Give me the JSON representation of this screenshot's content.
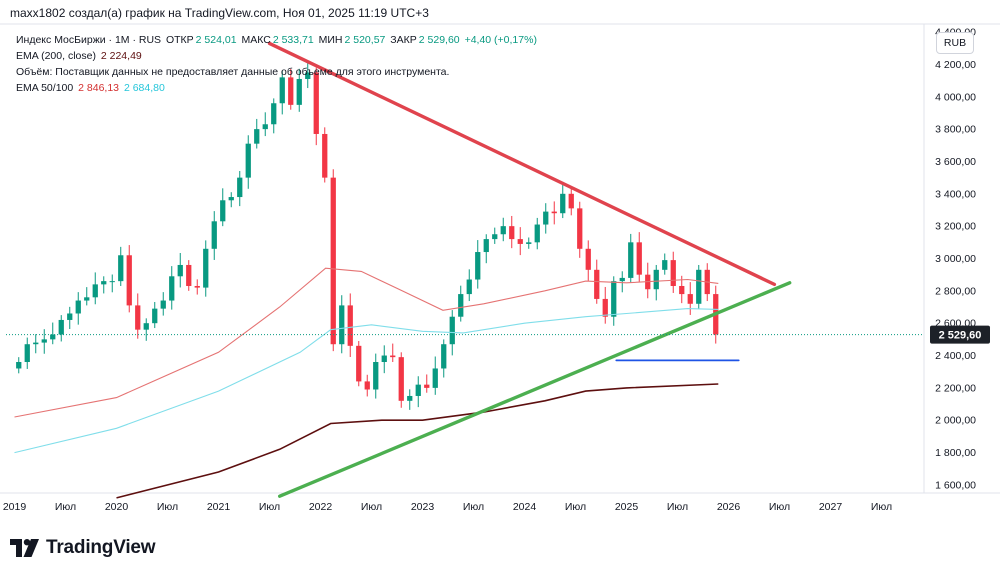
{
  "header": {
    "text": "maxx1802 создал(а) график на TradingView.com, Ноя 01, 2025 11:19 UTC+3"
  },
  "legend": {
    "symbol": "Индекс МосБиржи · 1М · RUS",
    "open_label": "ОТКР",
    "open": "2 524,01",
    "high_label": "МАКС",
    "high": "2 533,71",
    "low_label": "МИН",
    "low": "2 520,57",
    "close_label": "ЗАКР",
    "close": "2 529,60",
    "change": "+4,40 (+0,17%)",
    "ema200_label": "EMA (200, close)",
    "ema200_value": "2 224,49",
    "volume_text": "Объём: Поставщик данных не предоставляет данные об объеме для этого инструмента.",
    "ema50_100_label": "EMA 50/100",
    "ema50_value": "2 846,13",
    "ema100_value": "2 684,80"
  },
  "currency_button": "RUB",
  "brand": "TradingView",
  "colors": {
    "up": "#089981",
    "down": "#f23645",
    "ema50": "#e57373",
    "ema100": "#80deea",
    "ema200": "#5d0f0f",
    "resistance": "#e0434d",
    "support": "#4caf50",
    "level": "#1e53e5"
  },
  "chart_data": {
    "type": "candlestick",
    "y_axis": {
      "min": 1550,
      "max": 4450,
      "ticks": [
        1600,
        1800,
        2000,
        2200,
        2400,
        2600,
        2800,
        3000,
        3200,
        3400,
        3600,
        3800,
        4000,
        4200,
        4400
      ],
      "tick_labels": [
        "1 600,00",
        "1 800,00",
        "2 000,00",
        "2 200,00",
        "2 400,00",
        "2 600,00",
        "2 800,00",
        "3 000,00",
        "3 200,00",
        "3 400,00",
        "3 600,00",
        "3 800,00",
        "4 000,00",
        "4 200,00",
        "4 400,00"
      ]
    },
    "x_axis": {
      "start": "2018-12",
      "end": "2027-12",
      "tick_labels": [
        {
          "label": "2019",
          "month": "2019-01"
        },
        {
          "label": "Июл",
          "month": "2019-07"
        },
        {
          "label": "2020",
          "month": "2020-01"
        },
        {
          "label": "Июл",
          "month": "2020-07"
        },
        {
          "label": "2021",
          "month": "2021-01"
        },
        {
          "label": "Июл",
          "month": "2021-07"
        },
        {
          "label": "2022",
          "month": "2022-01"
        },
        {
          "label": "Июл",
          "month": "2022-07"
        },
        {
          "label": "2023",
          "month": "2023-01"
        },
        {
          "label": "Июл",
          "month": "2023-07"
        },
        {
          "label": "2024",
          "month": "2024-01"
        },
        {
          "label": "Июл",
          "month": "2024-07"
        },
        {
          "label": "2025",
          "month": "2025-01"
        },
        {
          "label": "Июл",
          "month": "2025-07"
        },
        {
          "label": "2026",
          "month": "2026-01"
        },
        {
          "label": "Июл",
          "month": "2026-07"
        },
        {
          "label": "2027",
          "month": "2027-01"
        },
        {
          "label": "Июл",
          "month": "2027-07"
        }
      ]
    },
    "first_month": "2019-01",
    "closes": [
      2360,
      2470,
      2480,
      2500,
      2530,
      2620,
      2660,
      2740,
      2760,
      2840,
      2860,
      2860,
      3020,
      2710,
      2560,
      2600,
      2690,
      2740,
      2890,
      2960,
      2830,
      2820,
      3060,
      3230,
      3360,
      3380,
      3500,
      3710,
      3800,
      3830,
      3960,
      4120,
      3950,
      4110,
      4150,
      3770,
      3500,
      2470,
      2710,
      2460,
      2240,
      2190,
      2360,
      2400,
      2390,
      2120,
      2150,
      2220,
      2200,
      2320,
      2470,
      2640,
      2780,
      2870,
      3040,
      3120,
      3150,
      3200,
      3120,
      3090,
      3100,
      3210,
      3290,
      3280,
      3400,
      3310,
      3060,
      2930,
      2750,
      2640,
      2860,
      2880,
      3100,
      2900,
      2810,
      2930,
      2990,
      2830,
      2780,
      2720,
      2930,
      2780,
      2530
    ],
    "closes_end": "2025-11",
    "last_price": 2529.6,
    "last_price_label": "2 529,60",
    "ema_lines": [
      {
        "name": "EMA 50",
        "points": [
          [
            2019.0,
            2020
          ],
          [
            2020.0,
            2140
          ],
          [
            2021.0,
            2420
          ],
          [
            2021.6,
            2700
          ],
          [
            2022.05,
            2940
          ],
          [
            2022.4,
            2920
          ],
          [
            2022.8,
            2800
          ],
          [
            2023.2,
            2680
          ],
          [
            2023.6,
            2720
          ],
          [
            2024.2,
            2800
          ],
          [
            2024.6,
            2860
          ],
          [
            2025.0,
            2850
          ],
          [
            2025.6,
            2870
          ],
          [
            2025.9,
            2846
          ]
        ]
      },
      {
        "name": "EMA 100",
        "points": [
          [
            2019.0,
            1800
          ],
          [
            2020.0,
            1950
          ],
          [
            2021.0,
            2180
          ],
          [
            2021.8,
            2420
          ],
          [
            2022.1,
            2560
          ],
          [
            2022.5,
            2590
          ],
          [
            2023.0,
            2550
          ],
          [
            2023.4,
            2540
          ],
          [
            2024.0,
            2600
          ],
          [
            2024.6,
            2640
          ],
          [
            2025.0,
            2660
          ],
          [
            2025.6,
            2690
          ],
          [
            2025.9,
            2685
          ]
        ]
      },
      {
        "name": "EMA 200",
        "points": [
          [
            2020.0,
            1520
          ],
          [
            2021.0,
            1680
          ],
          [
            2021.6,
            1820
          ],
          [
            2022.1,
            1980
          ],
          [
            2022.6,
            2000
          ],
          [
            2023.0,
            2000
          ],
          [
            2023.6,
            2050
          ],
          [
            2024.2,
            2120
          ],
          [
            2024.6,
            2180
          ],
          [
            2025.0,
            2200
          ],
          [
            2025.9,
            2224
          ]
        ]
      }
    ],
    "drawings": [
      {
        "name": "resistance-trendline",
        "from": [
          2021.5,
          4330
        ],
        "to": [
          2026.45,
          2840
        ]
      },
      {
        "name": "support-trendline",
        "from": [
          2021.6,
          1530
        ],
        "to": [
          2026.6,
          2850
        ]
      },
      {
        "name": "support-level-line",
        "from": [
          2024.9,
          2370
        ],
        "to": [
          2026.1,
          2370
        ]
      }
    ]
  }
}
